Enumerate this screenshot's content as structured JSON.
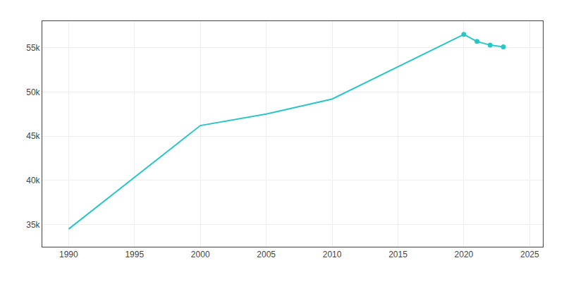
{
  "chart_data": {
    "type": "line",
    "x": [
      1990,
      2000,
      2005,
      2010,
      2020,
      2021,
      2022,
      2023
    ],
    "series": [
      {
        "color": "#2BC5C5",
        "line_style": "solid",
        "values": [
          34500,
          46200,
          47500,
          49200,
          56500,
          55700,
          55300,
          55100
        ]
      },
      {
        "color": "#2BC5C5",
        "line_style": "none",
        "marker": "circle",
        "values": [
          null,
          null,
          null,
          null,
          56500,
          55700,
          55300,
          55100
        ]
      }
    ],
    "xlim": [
      1988,
      2026
    ],
    "xticks": [
      1990,
      1995,
      2000,
      2005,
      2010,
      2015,
      2020,
      2025
    ],
    "ylim": [
      32500,
      58000
    ],
    "yticks": [
      {
        "value": 35000,
        "label": "35k"
      },
      {
        "value": 40000,
        "label": "40k"
      },
      {
        "value": 45000,
        "label": "45k"
      },
      {
        "value": 50000,
        "label": "50k"
      },
      {
        "value": 55000,
        "label": "55k"
      }
    ],
    "grid": true
  }
}
